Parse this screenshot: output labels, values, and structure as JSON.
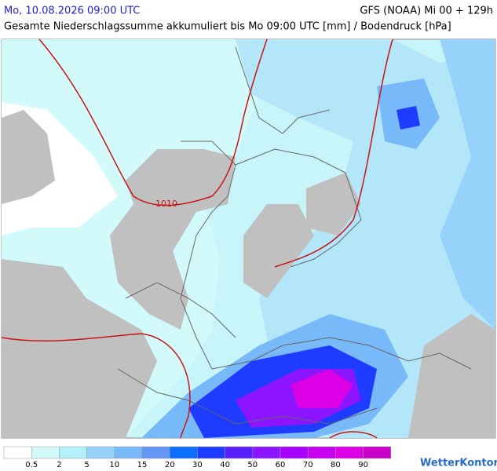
{
  "header": {
    "valid_time": "Mo, 10.08.2026 09:00 UTC",
    "model_run": "GFS (NOAA) Mi 00 + 129h",
    "subtitle": "Gesamte Niederschlagssumme akkumuliert bis Mo 09:00 UTC [mm] / Bodendruck [hPa]"
  },
  "map": {
    "isobar_label": "1010"
  },
  "legend": {
    "colors": [
      "#ffffff",
      "#d2fafa",
      "#b4f0fa",
      "#96d2fa",
      "#78b9fa",
      "#6496f5",
      "#0a6eff",
      "#1e3cff",
      "#5a1eff",
      "#8c14ff",
      "#a800ff",
      "#c800f0",
      "#dc00e6",
      "#c800c8"
    ],
    "labels": [
      "0.5",
      "2",
      "5",
      "10",
      "15",
      "20",
      "30",
      "40",
      "50",
      "60",
      "70",
      "80",
      "90"
    ]
  },
  "brand": "WetterKontor"
}
